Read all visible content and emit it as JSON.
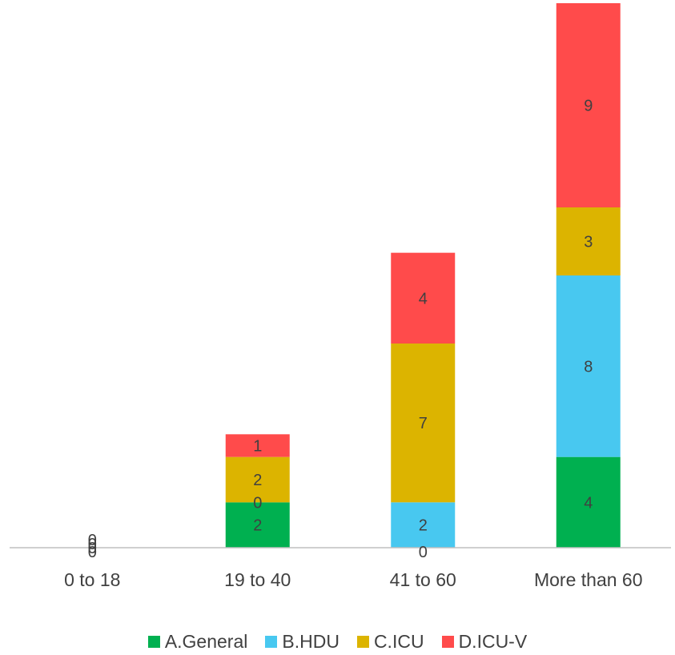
{
  "chart_data": {
    "type": "bar",
    "stacked": true,
    "categories": [
      "0 to 18",
      "19 to 40",
      "41 to 60",
      "More than 60"
    ],
    "series": [
      {
        "name": "A.General",
        "color": "#00B050",
        "values": [
          0,
          2,
          0,
          4
        ]
      },
      {
        "name": "B.HDU",
        "color": "#48C8F0",
        "values": [
          0,
          0,
          2,
          8
        ]
      },
      {
        "name": "C.ICU",
        "color": "#DCB400",
        "values": [
          0,
          2,
          7,
          3
        ]
      },
      {
        "name": "D.ICU-V",
        "color": "#FF4B4B",
        "values": [
          0,
          1,
          4,
          9
        ]
      }
    ],
    "ylim": [
      0,
      24
    ],
    "grid": false,
    "legend": "bottom",
    "data_labels": true
  }
}
